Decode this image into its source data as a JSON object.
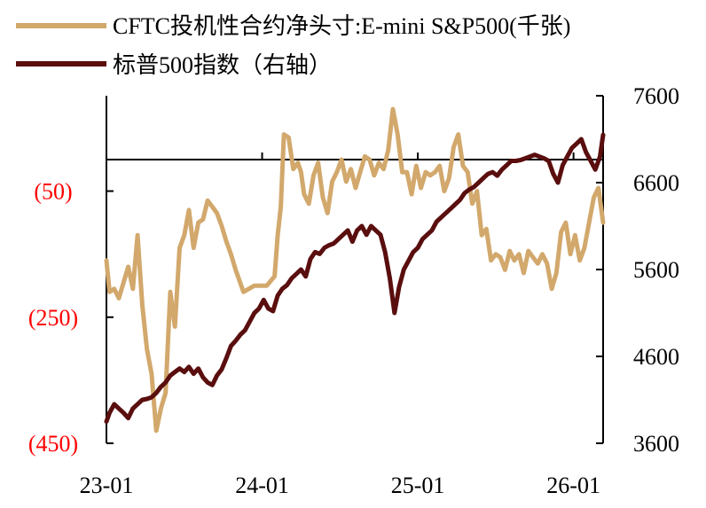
{
  "chart_data": {
    "type": "line",
    "title": "",
    "legend": {
      "placement": "top-left",
      "entries": [
        {
          "label": "CFTC投机性合约净头寸:E-mini   S&P500(千张)",
          "color": "#d2a86c"
        },
        {
          "label": "标普500指数（右轴）",
          "color": "#5a0e0e"
        }
      ]
    },
    "x_axis": {
      "tick_labels": [
        "23-01",
        "24-01",
        "25-01",
        "26-01"
      ],
      "range": [
        "2023-01",
        "2026-03"
      ]
    },
    "y_left": {
      "tick_labels": [
        "(50)",
        "(250)",
        "(450)"
      ],
      "tick_values": [
        -50,
        -250,
        -450
      ],
      "range": [
        -450,
        100
      ],
      "tick_color": "#ff0000",
      "zero_line": true
    },
    "y_right": {
      "tick_labels": [
        "7600",
        "6600",
        "5600",
        "4600",
        "3600"
      ],
      "tick_values": [
        7600,
        6600,
        5600,
        4600,
        3600
      ],
      "range": [
        3600,
        7600
      ]
    },
    "series": [
      {
        "name": "CFTC投机性合约净头寸:E-mini   S&P500(千张)",
        "axis": "left",
        "color": "#d2a86c",
        "x": [
          2023.0,
          2023.02,
          2023.05,
          2023.08,
          2023.11,
          2023.14,
          2023.17,
          2023.2,
          2023.23,
          2023.26,
          2023.29,
          2023.32,
          2023.35,
          2023.38,
          2023.41,
          2023.44,
          2023.47,
          2023.5,
          2023.53,
          2023.56,
          2023.59,
          2023.62,
          2023.65,
          2023.68,
          2023.71,
          2023.74,
          2023.77,
          2023.8,
          2023.83,
          2023.88,
          2023.95,
          2024.03,
          2024.08,
          2024.1,
          2024.12,
          2024.14,
          2024.17,
          2024.2,
          2024.23,
          2024.25,
          2024.27,
          2024.3,
          2024.33,
          2024.36,
          2024.39,
          2024.42,
          2024.45,
          2024.48,
          2024.51,
          2024.54,
          2024.57,
          2024.6,
          2024.63,
          2024.66,
          2024.69,
          2024.72,
          2024.75,
          2024.78,
          2024.81,
          2024.84,
          2024.87,
          2024.9,
          2024.93,
          2024.96,
          2024.99,
          2025.02,
          2025.05,
          2025.08,
          2025.11,
          2025.14,
          2025.17,
          2025.2,
          2025.23,
          2025.26,
          2025.29,
          2025.32,
          2025.35,
          2025.38,
          2025.41,
          2025.44,
          2025.47,
          2025.5,
          2025.53,
          2025.56,
          2025.59,
          2025.62,
          2025.65,
          2025.68,
          2025.71,
          2025.74,
          2025.77,
          2025.8,
          2025.83,
          2025.86,
          2025.89,
          2025.92,
          2025.95,
          2025.98,
          2026.01,
          2026.04,
          2026.07,
          2026.1,
          2026.13,
          2026.16,
          2026.19
        ],
        "values": [
          -160,
          -210,
          -205,
          -220,
          -195,
          -170,
          -205,
          -120,
          -230,
          -300,
          -340,
          -430,
          -395,
          -370,
          -210,
          -265,
          -140,
          -120,
          -80,
          -140,
          -100,
          -95,
          -65,
          -75,
          -85,
          -105,
          -130,
          -150,
          -175,
          -210,
          -200,
          -200,
          -185,
          -120,
          -75,
          40,
          35,
          -15,
          -5,
          -20,
          -55,
          -70,
          -25,
          -5,
          -60,
          -85,
          -35,
          -20,
          0,
          -35,
          -15,
          -45,
          -20,
          5,
          0,
          -25,
          -5,
          -15,
          15,
          80,
          40,
          -20,
          -20,
          -55,
          -10,
          -45,
          -20,
          -25,
          -20,
          -10,
          -50,
          -30,
          20,
          40,
          -10,
          -20,
          -70,
          -50,
          -120,
          -110,
          -160,
          -150,
          -155,
          -175,
          -145,
          -160,
          -150,
          -180,
          -145,
          -155,
          -165,
          -150,
          -165,
          -205,
          -180,
          -115,
          -100,
          -150,
          -120,
          -160,
          -140,
          -100,
          -60,
          -45,
          -100
        ]
      },
      {
        "name": "标普500指数（右轴）",
        "axis": "right",
        "color": "#5a0e0e",
        "x": [
          2023.0,
          2023.02,
          2023.05,
          2023.08,
          2023.11,
          2023.14,
          2023.17,
          2023.2,
          2023.23,
          2023.26,
          2023.29,
          2023.32,
          2023.35,
          2023.38,
          2023.41,
          2023.44,
          2023.47,
          2023.5,
          2023.53,
          2023.56,
          2023.59,
          2023.62,
          2023.65,
          2023.68,
          2023.71,
          2023.74,
          2023.77,
          2023.8,
          2023.83,
          2023.86,
          2023.89,
          2023.92,
          2023.95,
          2023.98,
          2024.01,
          2024.04,
          2024.07,
          2024.1,
          2024.13,
          2024.16,
          2024.19,
          2024.22,
          2024.25,
          2024.28,
          2024.31,
          2024.34,
          2024.37,
          2024.4,
          2024.43,
          2024.46,
          2024.49,
          2024.52,
          2024.55,
          2024.58,
          2024.61,
          2024.64,
          2024.67,
          2024.7,
          2024.73,
          2024.76,
          2024.79,
          2024.82,
          2024.85,
          2024.88,
          2024.91,
          2024.94,
          2024.97,
          2025.0,
          2025.03,
          2025.06,
          2025.09,
          2025.12,
          2025.15,
          2025.18,
          2025.21,
          2025.24,
          2025.27,
          2025.3,
          2025.33,
          2025.36,
          2025.39,
          2025.42,
          2025.45,
          2025.48,
          2025.51,
          2025.54,
          2025.57,
          2025.6,
          2025.63,
          2025.66,
          2025.69,
          2025.72,
          2025.75,
          2025.78,
          2025.81,
          2025.84,
          2025.87,
          2025.9,
          2025.93,
          2025.96,
          2025.99,
          2026.02,
          2026.05,
          2026.08,
          2026.11,
          2026.14,
          2026.17,
          2026.19
        ],
        "values": [
          3850,
          3950,
          4050,
          4000,
          3950,
          3890,
          4000,
          4050,
          4100,
          4110,
          4130,
          4180,
          4250,
          4300,
          4380,
          4420,
          4460,
          4420,
          4480,
          4400,
          4460,
          4360,
          4300,
          4270,
          4380,
          4450,
          4580,
          4720,
          4780,
          4850,
          4900,
          5000,
          5100,
          5150,
          5250,
          5150,
          5120,
          5300,
          5380,
          5420,
          5500,
          5550,
          5600,
          5520,
          5720,
          5800,
          5780,
          5850,
          5880,
          5900,
          5950,
          6000,
          6050,
          5920,
          6050,
          6100,
          6000,
          6100,
          6050,
          6000,
          5800,
          5500,
          5100,
          5400,
          5600,
          5700,
          5800,
          5850,
          5950,
          6000,
          6050,
          6150,
          6200,
          6250,
          6300,
          6350,
          6400,
          6480,
          6520,
          6550,
          6600,
          6650,
          6700,
          6720,
          6680,
          6750,
          6800,
          6850,
          6850,
          6860,
          6880,
          6900,
          6920,
          6900,
          6880,
          6850,
          6700,
          6600,
          6800,
          6900,
          7000,
          7050,
          7100,
          6950,
          6850,
          6750,
          6900,
          7150
        ]
      }
    ]
  }
}
